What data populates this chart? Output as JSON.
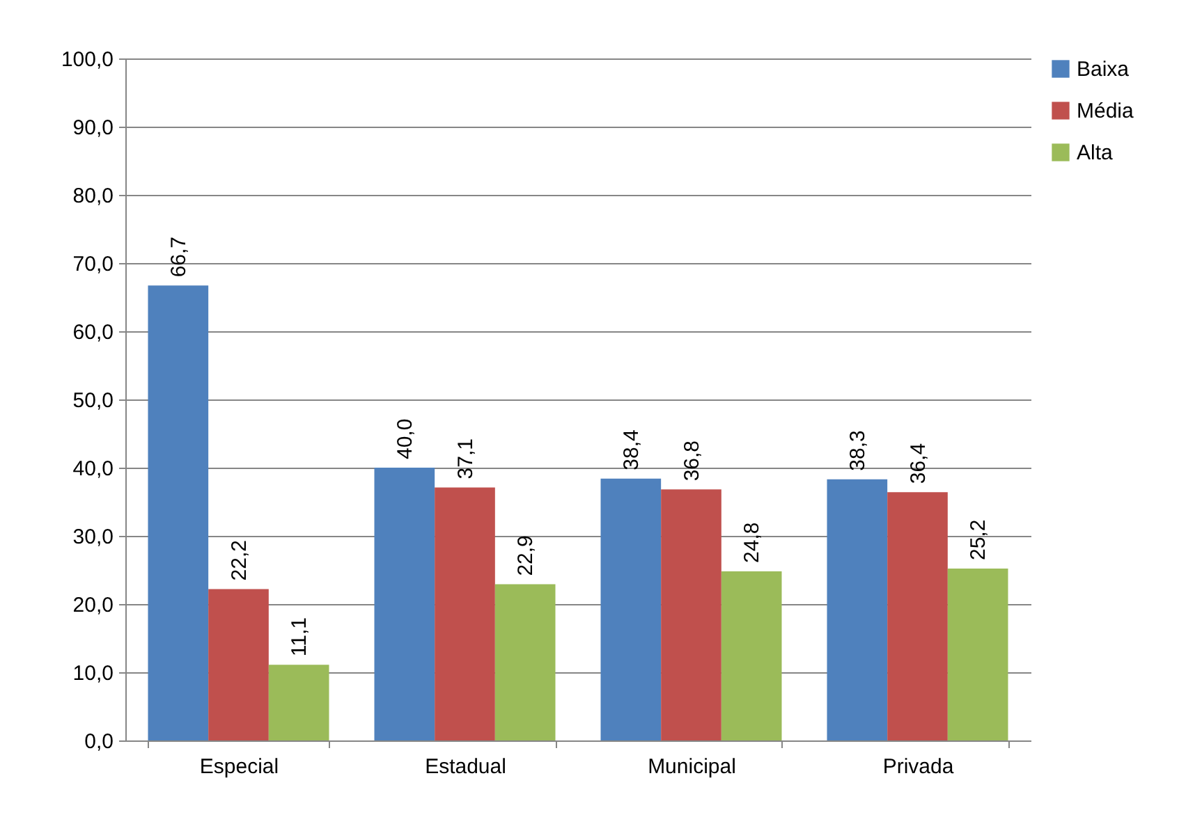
{
  "chart_data": {
    "type": "bar",
    "categories": [
      "Especial",
      "Estadual",
      "Municipal",
      "Privada"
    ],
    "series": [
      {
        "name": "Baixa",
        "color": "#4f81bd",
        "values": [
          66.7,
          40.0,
          38.4,
          38.3
        ],
        "value_labels": [
          "66,7",
          "40,0",
          "38,4",
          "38,3"
        ]
      },
      {
        "name": "Média",
        "color": "#c0504d",
        "values": [
          22.2,
          37.1,
          36.8,
          36.4
        ],
        "value_labels": [
          "22,2",
          "37,1",
          "36,8",
          "36,4"
        ]
      },
      {
        "name": "Alta",
        "color": "#9bbb59",
        "values": [
          11.1,
          22.9,
          24.8,
          25.2
        ],
        "value_labels": [
          "11,1",
          "22,9",
          "24,8",
          "25,2"
        ]
      }
    ],
    "ylim": [
      0,
      100
    ],
    "yticks": [
      {
        "value": 0,
        "label": "0,0"
      },
      {
        "value": 10,
        "label": "10,0"
      },
      {
        "value": 20,
        "label": "20,0"
      },
      {
        "value": 30,
        "label": "30,0"
      },
      {
        "value": 40,
        "label": "40,0"
      },
      {
        "value": 50,
        "label": "50,0"
      },
      {
        "value": 60,
        "label": "60,0"
      },
      {
        "value": 70,
        "label": "70,0"
      },
      {
        "value": 80,
        "label": "80,0"
      },
      {
        "value": 90,
        "label": "90,0"
      },
      {
        "value": 100,
        "label": "100,0"
      }
    ],
    "grid": "y",
    "legend": "right"
  }
}
